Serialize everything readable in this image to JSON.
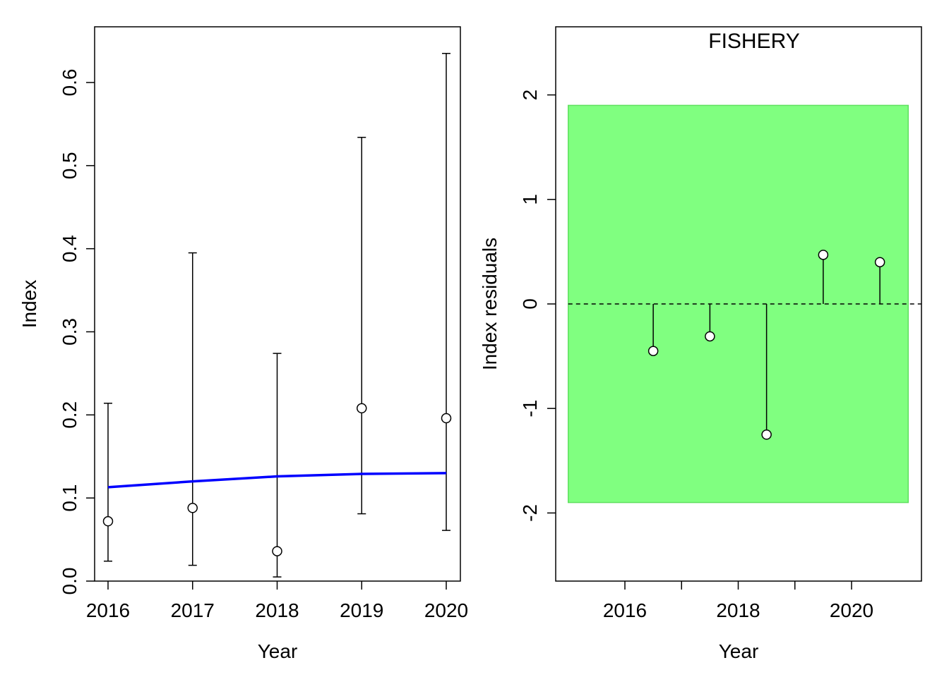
{
  "chart_data": [
    {
      "type": "scatter",
      "title": "",
      "xlabel": "Year",
      "ylabel": "Index",
      "xlim": [
        2016,
        2020
      ],
      "ylim": [
        0,
        0.65
      ],
      "x_ticks": [
        2016,
        2017,
        2018,
        2019,
        2020
      ],
      "x_tick_labels": [
        "2016",
        "2017",
        "2018",
        "2019",
        "2020"
      ],
      "y_ticks": [
        0,
        0.1,
        0.2,
        0.3,
        0.4,
        0.5,
        0.6
      ],
      "y_tick_labels": [
        "0.0",
        "0.1",
        "0.2",
        "0.3",
        "0.4",
        "0.5",
        "0.6"
      ],
      "grid": false,
      "series": [
        {
          "kind": "points_with_error_bars",
          "x": [
            2016,
            2017,
            2018,
            2019,
            2020
          ],
          "y": [
            0.072,
            0.088,
            0.036,
            0.208,
            0.196
          ],
          "lower": [
            0.024,
            0.019,
            0.005,
            0.081,
            0.061
          ],
          "upper": [
            0.214,
            0.395,
            0.274,
            0.534,
            0.635
          ]
        },
        {
          "kind": "line",
          "color": "#0000ff",
          "x": [
            2016,
            2017,
            2018,
            2019,
            2020
          ],
          "y": [
            0.113,
            0.12,
            0.126,
            0.129,
            0.13
          ]
        }
      ]
    },
    {
      "type": "scatter",
      "title": "FISHERY",
      "xlabel": "Year",
      "ylabel": "Index residuals",
      "xlim": [
        2014.78,
        2021.22
      ],
      "ylim": [
        -2.66,
        2.66
      ],
      "x_ticks": [
        2016,
        2017,
        2018,
        2019,
        2020
      ],
      "x_tick_labels": [
        "2016",
        "",
        "2018",
        "",
        "2020"
      ],
      "y_ticks": [
        -2,
        -1,
        0,
        1,
        2
      ],
      "y_tick_labels": [
        "-2",
        "-1",
        "0",
        "1",
        "2"
      ],
      "grid": false,
      "band": {
        "lower": -1.9,
        "upper": 1.9,
        "x0": 2015,
        "x1": 2021,
        "color": "#80ff80"
      },
      "reference_line": {
        "y": 0,
        "style": "dashed"
      },
      "series": [
        {
          "kind": "residual_stems",
          "x": [
            2016.5,
            2017.5,
            2018.5,
            2019.5,
            2020.5
          ],
          "y": [
            -0.45,
            -0.31,
            -1.25,
            0.47,
            0.4
          ]
        }
      ]
    }
  ]
}
